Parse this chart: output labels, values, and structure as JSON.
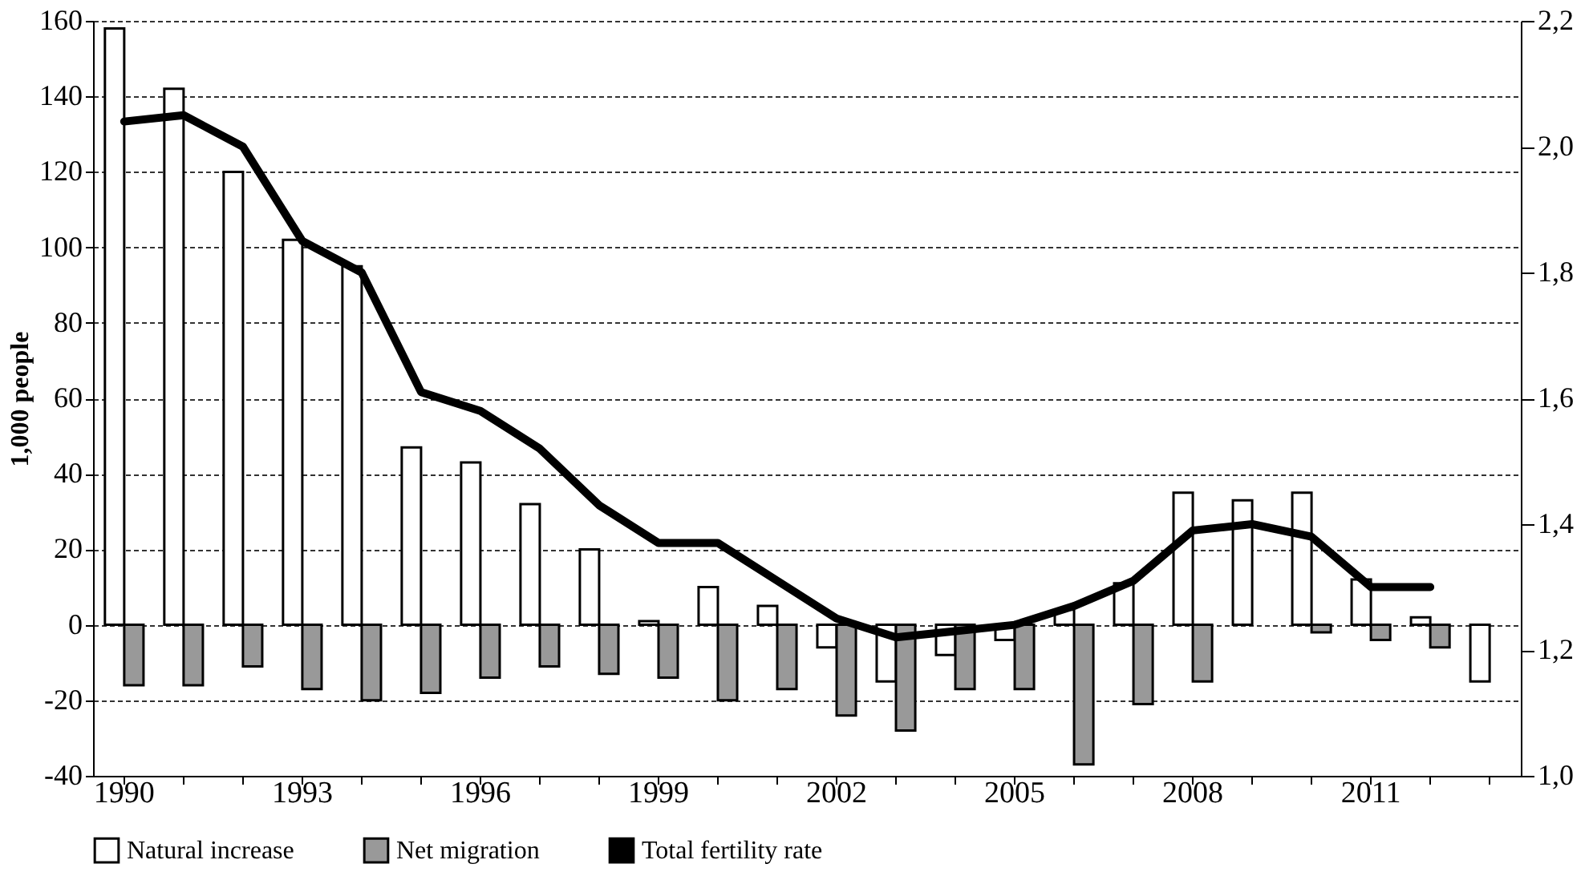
{
  "chart_data": {
    "type": "bar",
    "ylabel": "1,000 people",
    "categories": [
      "1990",
      null,
      null,
      "1993",
      null,
      null,
      "1996",
      null,
      null,
      "1999",
      null,
      null,
      "2002",
      null,
      null,
      "2005",
      null,
      null,
      "2008",
      null,
      null,
      "2011",
      null,
      null
    ],
    "series": [
      {
        "name": "Natural increase",
        "color": "#ffffff",
        "values": [
          158,
          142,
          120,
          102,
          95,
          47,
          43,
          32,
          20,
          1,
          10,
          5,
          -6,
          -15,
          -8,
          -4,
          4,
          11,
          35,
          33,
          35,
          12,
          2,
          -15
        ]
      },
      {
        "name": "Net migration",
        "color": "#999999",
        "values": [
          -16,
          -16,
          -11,
          -17,
          -20,
          -18,
          -14,
          -11,
          -13,
          -14,
          -20,
          -17,
          -24,
          -28,
          -17,
          -17,
          -37,
          -21,
          -15,
          null,
          -2,
          -4,
          -6,
          null
        ]
      },
      {
        "name": "Total fertility rate",
        "type": "line",
        "axis": "y2",
        "color": "#000000",
        "values": [
          2.04,
          2.05,
          2.0,
          1.85,
          1.8,
          1.61,
          1.58,
          1.52,
          1.43,
          1.37,
          1.37,
          1.31,
          1.25,
          1.22,
          1.23,
          1.24,
          1.27,
          1.31,
          1.39,
          1.4,
          1.38,
          1.3,
          1.3,
          null
        ]
      }
    ],
    "ylim": [
      -40,
      160
    ],
    "yticks": [
      -40,
      -20,
      0,
      20,
      40,
      60,
      80,
      100,
      120,
      140,
      160
    ],
    "y2lim": [
      1.0,
      2.2
    ],
    "y2ticks": [
      {
        "value": 1.0,
        "label": "1,0"
      },
      {
        "value": 1.2,
        "label": "1,2"
      },
      {
        "value": 1.4,
        "label": "1,4"
      },
      {
        "value": 1.6,
        "label": "1,6"
      },
      {
        "value": 1.8,
        "label": "1,8"
      },
      {
        "value": 2.0,
        "label": "2,0"
      },
      {
        "value": 2.2,
        "label": "2,2"
      }
    ],
    "grid": "y",
    "legend": "bottom",
    "line_style": "solid",
    "marker": "none"
  }
}
